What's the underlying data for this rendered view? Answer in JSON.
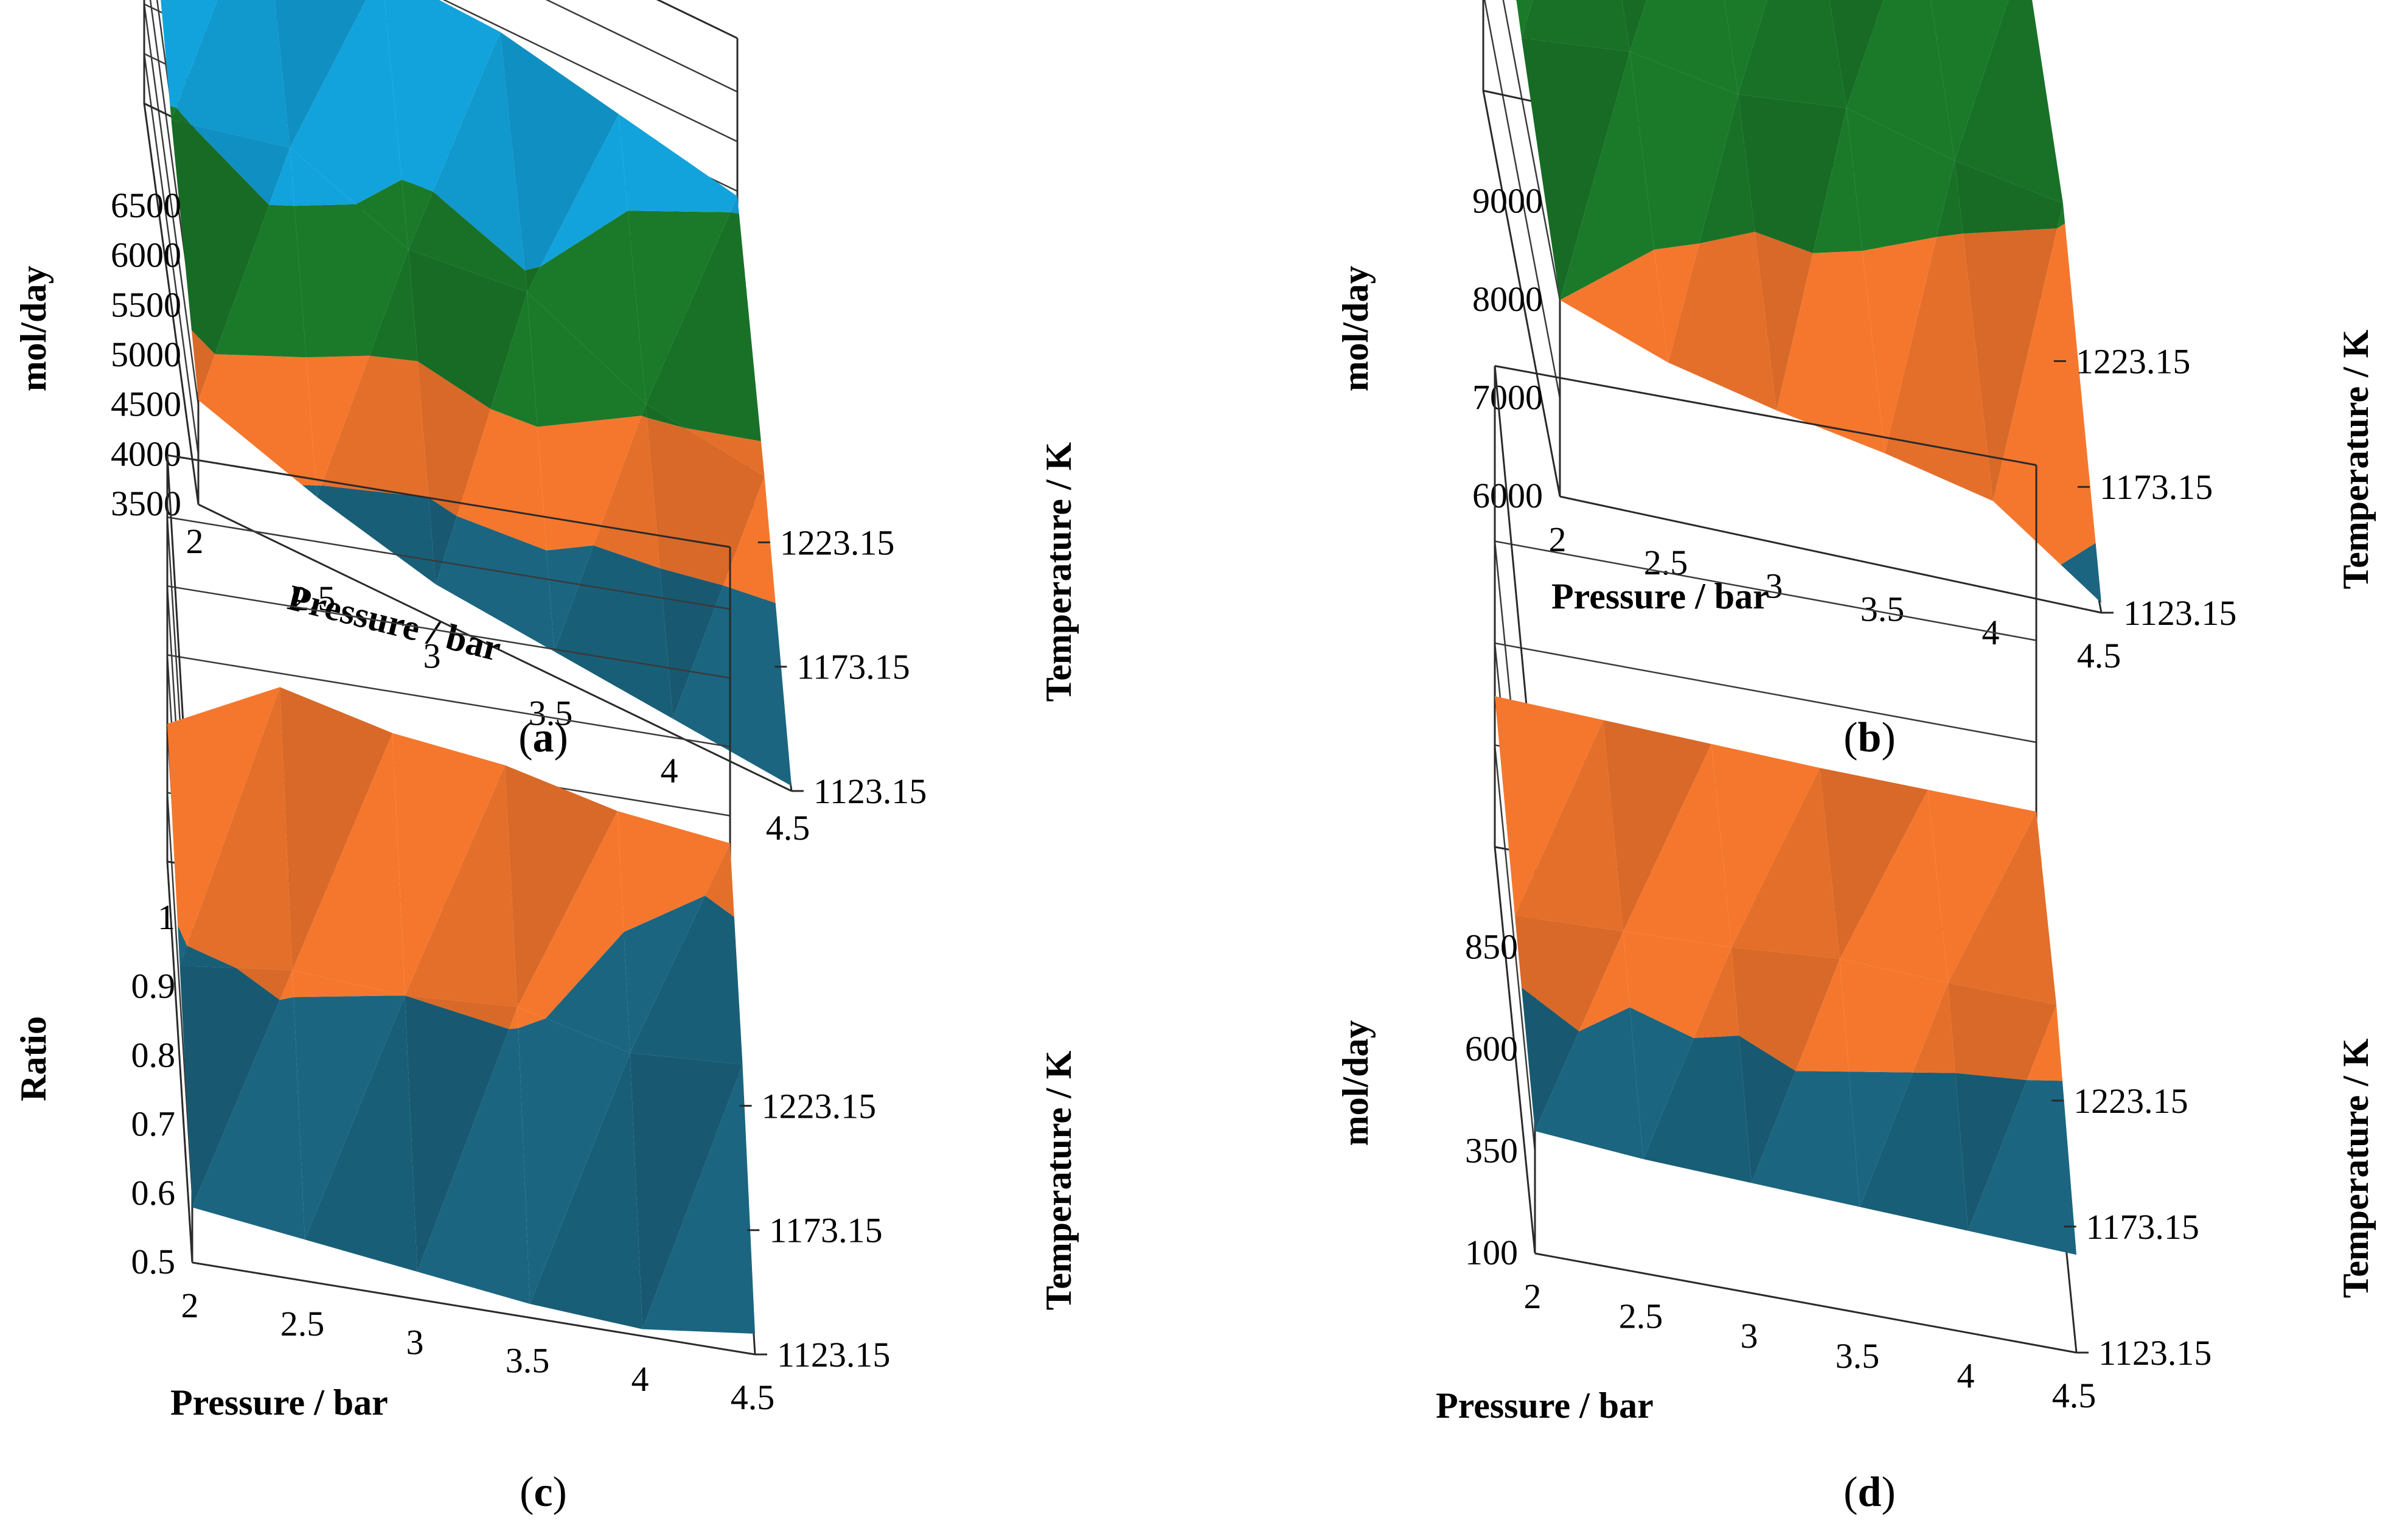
{
  "chart_data": [
    {
      "panel": "a",
      "type": "surface",
      "panel_label": "(a)",
      "xlabel": "Pressure / bar",
      "ylabel": "mol/day",
      "tlabel": "Temperature / K",
      "x_ticks": [
        "2",
        "2.5",
        "3",
        "3.5",
        "4",
        "4.5"
      ],
      "t_ticks": [
        "1123.15",
        "1173.15",
        "1223.15"
      ],
      "z_ticks": [
        "3500",
        "4000",
        "4500",
        "5000",
        "5500",
        "6000",
        "6500"
      ],
      "zlim": [
        3500,
        6500
      ],
      "grid": true,
      "colors": [
        "#1b6580",
        "#f5772e",
        "#1a7a2a",
        "#12a3dc",
        "#a0238f"
      ],
      "band_edges": [
        3500,
        4200,
        4750,
        5400,
        6150,
        6500
      ],
      "series": [
        {
          "name": "1123.15 K",
          "values": [
            4550,
            4150,
            3850,
            3750,
            3650,
            3550
          ]
        },
        {
          "name": "1173.15 K",
          "values": [
            5350,
            5650,
            5200,
            5350,
            4800,
            4650
          ]
        },
        {
          "name": "1223.15 K",
          "values": [
            6450,
            6300,
            6000,
            5950,
            5700,
            5450
          ]
        }
      ]
    },
    {
      "panel": "b",
      "type": "surface",
      "panel_label": "(b)",
      "xlabel": "Pressure / bar",
      "ylabel": "mol/day",
      "tlabel": "Temperature / K",
      "x_ticks": [
        "2",
        "2.5",
        "3",
        "3.5",
        "4",
        "4.5"
      ],
      "t_ticks": [
        "1123.15",
        "1173.15",
        "1223.15"
      ],
      "z_ticks": [
        "6000",
        "7000",
        "8000",
        "9000"
      ],
      "zlim": [
        6000,
        9500
      ],
      "grid": true,
      "colors": [
        "#1b6580",
        "#f5772e",
        "#1a7a2a",
        "#12a3dc"
      ],
      "band_edges": [
        6000,
        6400,
        8000,
        9300,
        9500
      ],
      "series": [
        {
          "name": "1123.15 K",
          "values": [
            8000,
            7600,
            7350,
            7150,
            6900,
            6100
          ]
        },
        {
          "name": "1173.15 K",
          "values": [
            8600,
            8700,
            8500,
            8600,
            8300,
            8100
          ]
        },
        {
          "name": "1223.15 K",
          "values": [
            9400,
            9200,
            9100,
            9000,
            8850,
            8600
          ]
        }
      ]
    },
    {
      "panel": "c",
      "type": "surface",
      "panel_label": "(c)",
      "xlabel": "Pressure / bar",
      "ylabel": "Ratio",
      "tlabel": "Temperature / K",
      "x_ticks": [
        "2",
        "2.5",
        "3",
        "3.5",
        "4",
        "4.5"
      ],
      "t_ticks": [
        "1123.15",
        "1173.15",
        "1223.15"
      ],
      "z_ticks": [
        "0.5",
        "0.6",
        "0.7",
        "0.8",
        "0.9",
        "1"
      ],
      "zlim": [
        0.5,
        1.0
      ],
      "grid": true,
      "colors": [
        "#1b6580",
        "#f5772e"
      ],
      "band_edges": [
        0.5,
        0.65,
        1.0
      ],
      "series": [
        {
          "name": "1123.15 K",
          "values": [
            0.58,
            0.56,
            0.54,
            0.52,
            0.51,
            0.53
          ]
        },
        {
          "name": "1173.15 K",
          "values": [
            0.64,
            0.66,
            0.65,
            0.66,
            0.62,
            0.63
          ]
        },
        {
          "name": "1223.15 K",
          "values": [
            0.7,
            0.78,
            0.74,
            0.72,
            0.68,
            0.66
          ]
        }
      ]
    },
    {
      "panel": "d",
      "type": "surface",
      "panel_label": "(d)",
      "xlabel": "Pressure / bar",
      "ylabel": "mol/day",
      "tlabel": "Temperature / K",
      "x_ticks": [
        "2",
        "2.5",
        "3",
        "3.5",
        "4",
        "4.5"
      ],
      "t_ticks": [
        "1123.15",
        "1173.15",
        "1223.15"
      ],
      "z_ticks": [
        "100",
        "350",
        "600",
        "850"
      ],
      "zlim": [
        100,
        1100
      ],
      "grid": true,
      "colors": [
        "#1b6580",
        "#f5772e"
      ],
      "band_edges": [
        100,
        420,
        1100
      ],
      "series": [
        {
          "name": "1123.15 K",
          "values": [
            400,
            380,
            370,
            360,
            350,
            340
          ]
        },
        {
          "name": "1173.15 K",
          "values": [
            430,
            440,
            450,
            470,
            460,
            455
          ]
        },
        {
          "name": "1223.15 K",
          "values": [
            470,
            460,
            450,
            440,
            435,
            430
          ]
        }
      ]
    }
  ]
}
